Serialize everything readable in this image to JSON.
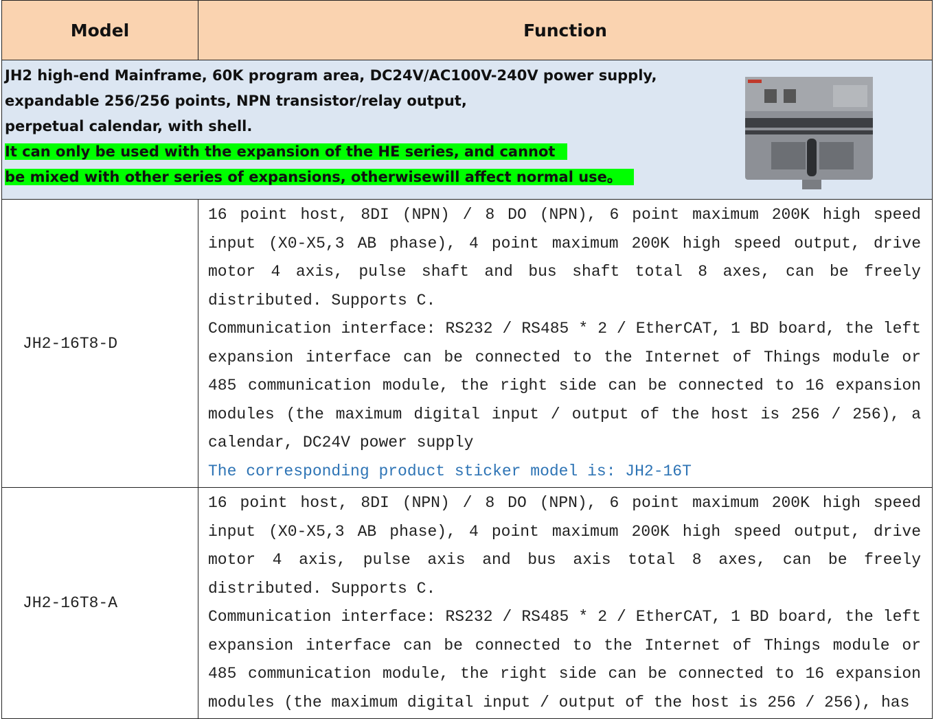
{
  "table": {
    "header": [
      "Model",
      "Function"
    ],
    "intro": {
      "lines": [
        "JH2 high-end Mainframe, 60K program area, DC24V/AC100V-240V power supply,",
        "expandable 256/256 points, NPN transistor/relay output,",
        "perpetual calendar, with shell."
      ],
      "highlight": [
        "It can only be used with the expansion of the HE series, and cannot",
        "be mixed with other series of expansions, otherwisewill affect normal use。"
      ]
    },
    "rows": [
      {
        "model": "JH2-16T8-D",
        "function": [
          "16 point host, 8DI (NPN) / 8 DO (NPN), 6 point maximum 200K high speed input (X0-X5,3 AB phase), 4 point maximum 200K high speed output, drive motor 4 axis, pulse shaft and bus shaft total 8 axes, can be freely distributed. Supports C.",
          "Communication interface: RS232 / RS485 * 2 / EtherCAT, 1 BD board, the left expansion interface can be connected to the Internet of Things module or 485 communication module, the right side can be connected to 16 expansion modules (the maximum digital input / output of the host is 256 / 256), a calendar, DC24V power supply"
        ],
        "note": "The corresponding product sticker model is: JH2-16T"
      },
      {
        "model": "JH2-16T8-A",
        "function": [
          "16 point host, 8DI (NPN) / 8 DO (NPN), 6 point maximum 200K high speed input (X0-X5,3 AB phase), 4 point maximum 200K high speed output, drive motor 4 axis, pulse axis and bus axis total 8 axes, can be freely distributed. Supports C.",
          "Communication interface: RS232 / RS485 * 2 / EtherCAT, 1 BD board, the left expansion interface can be connected to the Internet of Things module or 485 communication module, the right side can be connected to 16 expansion modules (the maximum digital input / output of the host is 256 / 256), has"
        ]
      }
    ]
  }
}
